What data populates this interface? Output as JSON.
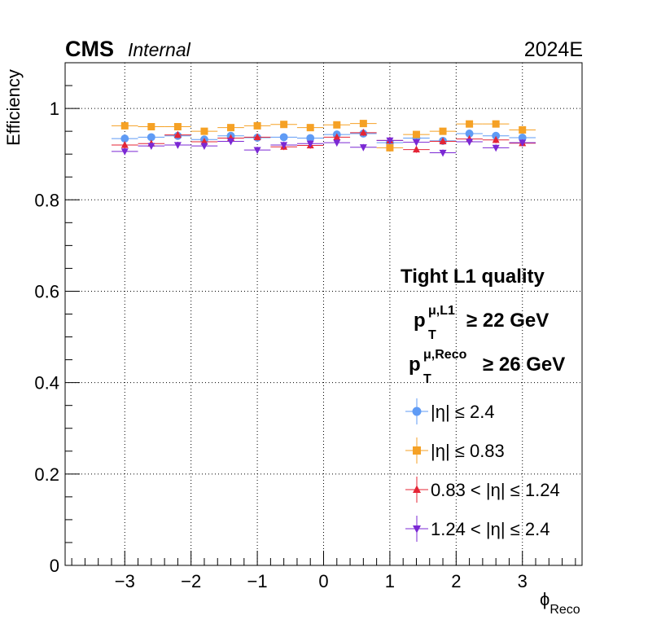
{
  "header": {
    "experiment": "CMS",
    "status": "Internal",
    "era": "2024E"
  },
  "annotations": {
    "quality": "Tight L1 quality",
    "l1_p": "p",
    "l1_sup": "μ,L1",
    "l1_sub": "T",
    "l1_cut": "≥ 22 GeV",
    "reco_p": "p",
    "reco_sup": "μ,Reco",
    "reco_sub": "T",
    "reco_cut": "≥ 26 GeV"
  },
  "axes": {
    "ylabel": "Efficiency",
    "xlabel_main": "ϕ",
    "xlabel_sub": "Reco"
  },
  "chart_data": {
    "type": "scatter",
    "xlim": [
      -3.9,
      3.9
    ],
    "ylim": [
      0,
      1.1
    ],
    "xticks": [
      -3,
      -2,
      -1,
      0,
      1,
      2,
      3
    ],
    "xtick_labels": [
      "−3",
      "−2",
      "−1",
      "0",
      "1",
      "2",
      "3"
    ],
    "yticks": [
      0,
      0.2,
      0.4,
      0.6,
      0.8,
      1
    ],
    "ytick_labels": [
      "0",
      "0.2",
      "0.4",
      "0.6",
      "0.8",
      "1"
    ],
    "grid": true,
    "legend_position": "lower-right",
    "x": [
      -3.0,
      -2.6,
      -2.2,
      -1.8,
      -1.4,
      -1.0,
      -0.6,
      -0.2,
      0.2,
      0.6,
      1.0,
      1.4,
      1.8,
      2.2,
      2.6,
      3.0
    ],
    "x_half_width": 0.2,
    "series": [
      {
        "name": "|η| ≤ 2.4",
        "color": "#5f9bf5",
        "marker": "circle",
        "values": [
          0.934,
          0.937,
          0.94,
          0.932,
          0.94,
          0.936,
          0.937,
          0.935,
          0.943,
          0.945,
          0.925,
          0.935,
          0.929,
          0.945,
          0.94,
          0.936
        ]
      },
      {
        "name": "|η| ≤ 0.83",
        "color": "#f5a125",
        "marker": "square",
        "values": [
          0.962,
          0.96,
          0.96,
          0.95,
          0.958,
          0.962,
          0.965,
          0.958,
          0.964,
          0.967,
          0.914,
          0.943,
          0.95,
          0.966,
          0.966,
          0.953
        ]
      },
      {
        "name": "0.83 < |η| ≤ 1.24",
        "color": "#e42536",
        "marker": "triangle-up",
        "values": [
          0.92,
          0.923,
          0.942,
          0.927,
          0.935,
          0.937,
          0.916,
          0.919,
          0.937,
          0.947,
          0.93,
          0.91,
          0.928,
          0.933,
          0.931,
          0.924
        ]
      },
      {
        "name": "1.24 < |η| ≤ 2.4",
        "color": "#7b28d4",
        "marker": "triangle-down",
        "values": [
          0.906,
          0.918,
          0.92,
          0.918,
          0.928,
          0.909,
          0.92,
          0.923,
          0.925,
          0.915,
          0.93,
          0.926,
          0.903,
          0.927,
          0.914,
          0.925
        ]
      }
    ]
  }
}
